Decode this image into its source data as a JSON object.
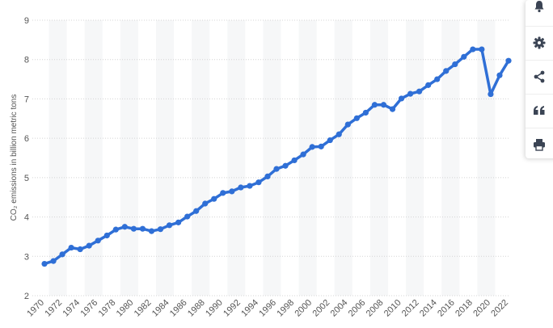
{
  "chart_data": {
    "type": "line",
    "title": "",
    "xlabel": "",
    "ylabel": "CO₂ emissions in billion metric tons",
    "ylim": [
      2,
      9
    ],
    "yticks": [
      2,
      3,
      4,
      5,
      6,
      7,
      8,
      9
    ],
    "xtick_labels": [
      "1970",
      "1972",
      "1974",
      "1976",
      "1978",
      "1980",
      "1982",
      "1984",
      "1986",
      "1988",
      "1990",
      "1992",
      "1994",
      "1996",
      "1998",
      "2000",
      "2002",
      "2004",
      "2006",
      "2008",
      "2010",
      "2012",
      "2014",
      "2016",
      "2018",
      "2020",
      "2022"
    ],
    "grid": true,
    "legend": "none",
    "line_color": "#2f6fd6",
    "years": [
      1970,
      1971,
      1972,
      1973,
      1974,
      1975,
      1976,
      1977,
      1978,
      1979,
      1980,
      1981,
      1982,
      1983,
      1984,
      1985,
      1986,
      1987,
      1988,
      1989,
      1990,
      1991,
      1992,
      1993,
      1994,
      1995,
      1996,
      1997,
      1998,
      1999,
      2000,
      2001,
      2002,
      2003,
      2004,
      2005,
      2006,
      2007,
      2008,
      2009,
      2010,
      2011,
      2012,
      2013,
      2014,
      2015,
      2016,
      2017,
      2018,
      2019,
      2020,
      2021,
      2022
    ],
    "values": [
      2.81,
      2.88,
      3.05,
      3.22,
      3.18,
      3.27,
      3.4,
      3.53,
      3.68,
      3.75,
      3.7,
      3.7,
      3.64,
      3.69,
      3.79,
      3.86,
      4.01,
      4.15,
      4.34,
      4.46,
      4.61,
      4.65,
      4.75,
      4.79,
      4.88,
      5.03,
      5.22,
      5.3,
      5.44,
      5.59,
      5.78,
      5.79,
      5.95,
      6.1,
      6.35,
      6.51,
      6.65,
      6.85,
      6.85,
      6.74,
      7.01,
      7.13,
      7.19,
      7.35,
      7.5,
      7.71,
      7.88,
      8.07,
      8.26,
      8.26,
      7.12,
      7.6,
      7.97
    ]
  },
  "sidebar": {
    "icons": [
      "bell-icon",
      "gear-icon",
      "share-icon",
      "quote-icon",
      "print-icon"
    ]
  }
}
